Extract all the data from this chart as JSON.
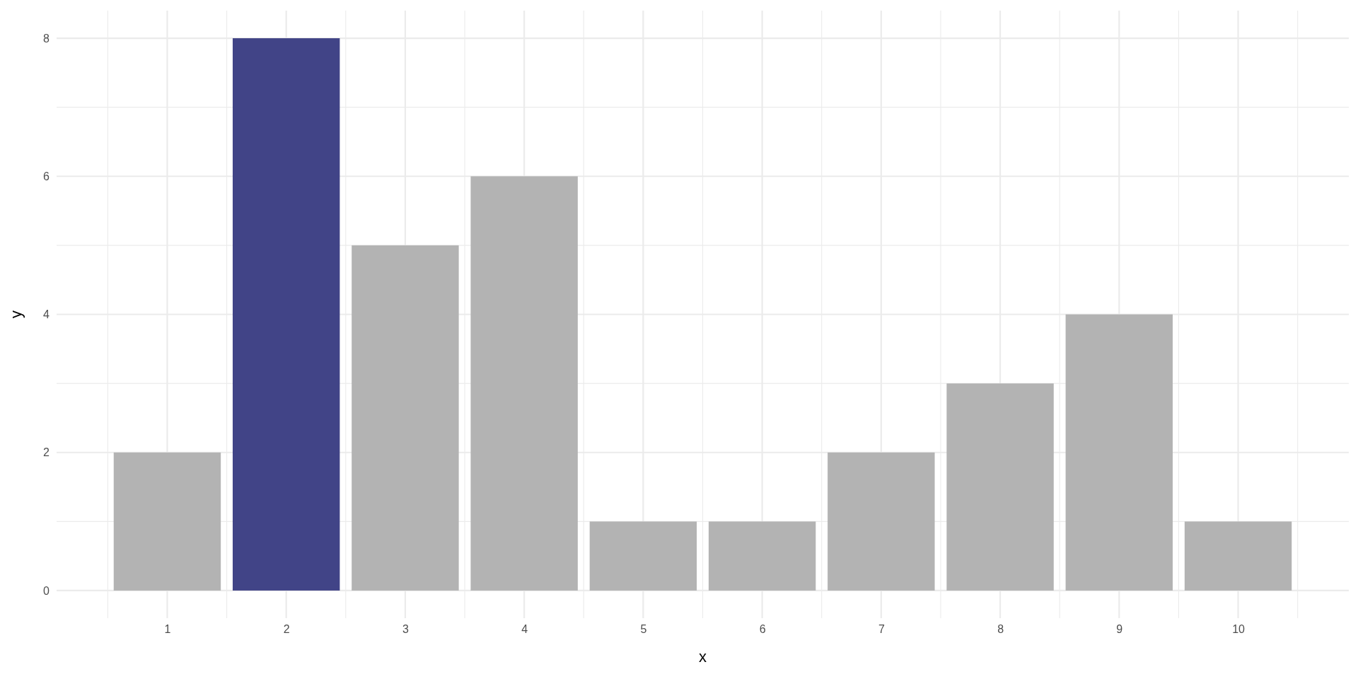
{
  "chart_data": {
    "type": "bar",
    "xlabel": "x",
    "ylabel": "y",
    "categories": [
      "1",
      "2",
      "3",
      "4",
      "5",
      "6",
      "7",
      "8",
      "9",
      "10"
    ],
    "values": [
      2,
      8,
      5,
      6,
      1,
      1,
      2,
      3,
      4,
      1
    ],
    "colors": [
      "#b3b3b3",
      "#414487",
      "#b3b3b3",
      "#b3b3b3",
      "#b3b3b3",
      "#b3b3b3",
      "#b3b3b3",
      "#b3b3b3",
      "#b3b3b3",
      "#b3b3b3"
    ],
    "ylim": [
      -0.4,
      8.4
    ],
    "yticks": [
      0,
      2,
      4,
      6,
      8
    ],
    "grid": true
  }
}
